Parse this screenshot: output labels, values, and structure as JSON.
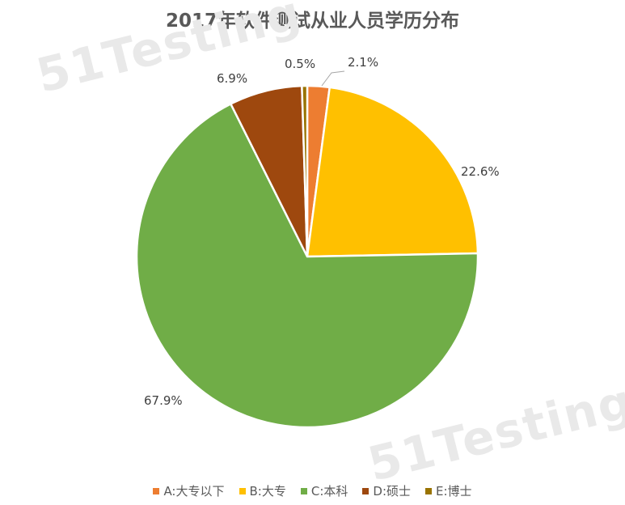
{
  "chart_data": {
    "type": "pie",
    "title": "2017年软件测试从业人员学历分布",
    "categories": [
      "A:大专以下",
      "B:大专",
      "C:本科",
      "D:硕士",
      "E:博士"
    ],
    "values": [
      2.1,
      22.6,
      67.9,
      6.9,
      0.5
    ],
    "labels": [
      "2.1%",
      "22.6%",
      "67.9%",
      "6.9%",
      "0.5%"
    ],
    "colors": [
      "#ED7D31",
      "#FFC000",
      "#70AD47",
      "#9E480E",
      "#997300"
    ],
    "legend_position": "bottom"
  },
  "watermark": "51Testing"
}
